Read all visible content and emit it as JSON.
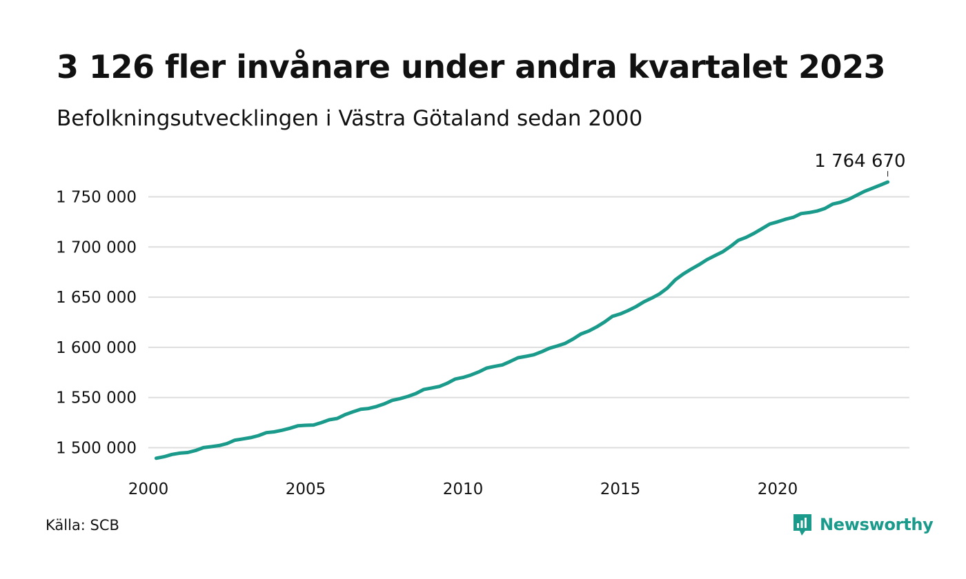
{
  "title": "3 126 fler invånare under andra kvartalet 2023",
  "subtitle": "Befolkningsutvecklingen i Västra Götaland sedan 2000",
  "source": "Källa: SCB",
  "brand": {
    "name": "Newsworthy",
    "color": "#1a9a8a",
    "icon": "newsworthy-chart-bubble-icon"
  },
  "colors": {
    "line": "#1a9a8a",
    "grid": "#dddddd",
    "text": "#111111"
  },
  "chart_data": {
    "type": "line",
    "title": "3 126 fler invånare under andra kvartalet 2023",
    "subtitle": "Befolkningsutvecklingen i Västra Götaland sedan 2000",
    "xlabel": "",
    "ylabel": "",
    "x_ticks": [
      2000,
      2005,
      2010,
      2015,
      2020
    ],
    "x_tick_labels": [
      "2000",
      "2005",
      "2010",
      "2015",
      "2020"
    ],
    "y_ticks": [
      1500000,
      1550000,
      1600000,
      1650000,
      1700000,
      1750000
    ],
    "y_tick_labels": [
      "1 500 000",
      "1 550 000",
      "1 600 000",
      "1 650 000",
      "1 700 000",
      "1 750 000"
    ],
    "xlim": [
      2000.0,
      2024.0
    ],
    "ylim": [
      1490000,
      1775000
    ],
    "grid": "horizontal",
    "end_label": "1 764 670",
    "series": [
      {
        "x": [
          2000.25,
          2000.5,
          2000.75,
          2001.0,
          2001.25,
          2001.5,
          2001.75,
          2002.0,
          2002.25,
          2002.5,
          2002.75,
          2003.0,
          2003.25,
          2003.5,
          2003.75,
          2004.0,
          2004.25,
          2004.5,
          2004.75,
          2005.0,
          2005.25,
          2005.5,
          2005.75,
          2006.0,
          2006.25,
          2006.5,
          2006.75,
          2007.0,
          2007.25,
          2007.5,
          2007.75,
          2008.0,
          2008.25,
          2008.5,
          2008.75,
          2009.0,
          2009.25,
          2009.5,
          2009.75,
          2010.0,
          2010.25,
          2010.5,
          2010.75,
          2011.0,
          2011.25,
          2011.5,
          2011.75,
          2012.0,
          2012.25,
          2012.5,
          2012.75,
          2013.0,
          2013.25,
          2013.5,
          2013.75,
          2014.0,
          2014.25,
          2014.5,
          2014.75,
          2015.0,
          2015.25,
          2015.5,
          2015.75,
          2016.0,
          2016.25,
          2016.5,
          2016.75,
          2017.0,
          2017.25,
          2017.5,
          2017.75,
          2018.0,
          2018.25,
          2018.5,
          2018.75,
          2019.0,
          2019.25,
          2019.5,
          2019.75,
          2020.0,
          2020.25,
          2020.5,
          2020.75,
          2021.0,
          2021.25,
          2021.5,
          2021.75,
          2022.0,
          2022.25,
          2022.5,
          2022.75,
          2023.0,
          2023.25,
          2023.5
        ],
        "values": [
          1489500,
          1491000,
          1493300,
          1494600,
          1495200,
          1497200,
          1500100,
          1501000,
          1502100,
          1504100,
          1507500,
          1508700,
          1510000,
          1512000,
          1515000,
          1515800,
          1517400,
          1519400,
          1521800,
          1522300,
          1522600,
          1525000,
          1527800,
          1529100,
          1532900,
          1535700,
          1538300,
          1539100,
          1541000,
          1543700,
          1547200,
          1548900,
          1551100,
          1553900,
          1558000,
          1559500,
          1561000,
          1564200,
          1568400,
          1570000,
          1572400,
          1575500,
          1579300,
          1581000,
          1582500,
          1585900,
          1589600,
          1591000,
          1592600,
          1595600,
          1599100,
          1601400,
          1604000,
          1608300,
          1613300,
          1616300,
          1620400,
          1625300,
          1630900,
          1633300,
          1636700,
          1640600,
          1645300,
          1649100,
          1653300,
          1659200,
          1667300,
          1673100,
          1677900,
          1682300,
          1687300,
          1691300,
          1695100,
          1700500,
          1706600,
          1709600,
          1713600,
          1718200,
          1722900,
          1725100,
          1727600,
          1729600,
          1733300,
          1734300,
          1735800,
          1738300,
          1742700,
          1744600,
          1747400,
          1751300,
          1755300,
          1758400,
          1761500,
          1764670
        ]
      }
    ]
  }
}
